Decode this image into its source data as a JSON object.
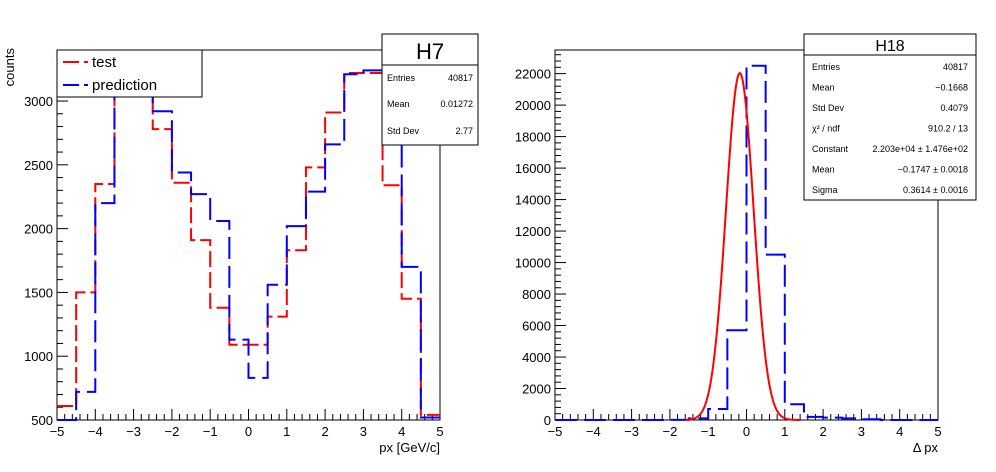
{
  "chart_data": [
    {
      "type": "histogram",
      "name": "H7",
      "xlabel": "px [GeV/c]",
      "ylabel": "counts",
      "xlim": [
        -5,
        5
      ],
      "ylim": [
        500,
        3400
      ],
      "xticks": [
        -5,
        -4,
        -3,
        -2,
        -1,
        0,
        1,
        2,
        3,
        4,
        5
      ],
      "yticks": [
        500,
        1000,
        1500,
        2000,
        2500,
        3000
      ],
      "bin_edges": [
        -5,
        -4.5,
        -4,
        -3.5,
        -3,
        -2.5,
        -2,
        -1.5,
        -1,
        -0.5,
        0,
        0.5,
        1,
        1.5,
        2,
        2.5,
        3,
        3.5,
        4,
        4.5,
        5
      ],
      "series": [
        {
          "name": "test",
          "color": "#ff0000",
          "dash": "16,5",
          "values": [
            610,
            1500,
            2350,
            3230,
            3250,
            2780,
            2360,
            1910,
            1380,
            1090,
            1090,
            1310,
            1830,
            2480,
            2910,
            3220,
            3220,
            2340,
            1450,
            540
          ]
        },
        {
          "name": "prediction",
          "color": "#0000ff",
          "dash": "22,7",
          "values": [
            500,
            720,
            2200,
            3110,
            3270,
            2920,
            2440,
            2270,
            2060,
            1130,
            830,
            1560,
            2020,
            2290,
            2660,
            3210,
            3240,
            2720,
            1700,
            520
          ]
        }
      ],
      "legend": {
        "position": "top-left",
        "entries": [
          {
            "label": "test",
            "color": "#ff0000"
          },
          {
            "label": "prediction",
            "color": "#0000ff"
          }
        ]
      },
      "stats": {
        "title": "H7",
        "rows": [
          {
            "key": "Entries",
            "value": "40817"
          },
          {
            "key": "Mean",
            "value": "0.01272"
          },
          {
            "key": "Std Dev",
            "value": "2.77"
          }
        ]
      }
    },
    {
      "type": "histogram",
      "name": "H18",
      "xlabel": "Δ px",
      "ylabel": "",
      "xlim": [
        -5,
        5
      ],
      "ylim": [
        0,
        23500
      ],
      "xticks": [
        -5,
        -4,
        -3,
        -2,
        -1,
        0,
        1,
        2,
        3,
        4,
        5
      ],
      "yticks": [
        0,
        2000,
        4000,
        6000,
        8000,
        10000,
        12000,
        14000,
        16000,
        18000,
        20000,
        22000
      ],
      "bin_edges": [
        -5,
        -4.5,
        -4,
        -3.5,
        -3,
        -2.5,
        -2,
        -1.5,
        -1,
        -0.5,
        0,
        0.5,
        1,
        1.5,
        2,
        2.5,
        3,
        3.5,
        4,
        4.5,
        5
      ],
      "series": [
        {
          "name": "Δ px",
          "color": "#0000ff",
          "dash": "22,7",
          "values": [
            0,
            0,
            0,
            0,
            0,
            0,
            10,
            100,
            700,
            5700,
            22500,
            10500,
            1000,
            200,
            150,
            100,
            50,
            0,
            0,
            0
          ]
        }
      ],
      "fit": {
        "function": "gaus",
        "color": "#ff0000",
        "constant": 22030,
        "mean": -0.1747,
        "sigma": 0.3614
      },
      "stats": {
        "title": "H18",
        "rows": [
          {
            "key": "Entries",
            "value": "40817"
          },
          {
            "key": "Mean",
            "value": "−0.1668"
          },
          {
            "key": "Std Dev",
            "value": "0.4079"
          },
          {
            "key": "χ² / ndf",
            "value": "910.2 / 13"
          },
          {
            "key": "Constant",
            "value": "2.203e+04 ± 1.476e+02"
          },
          {
            "key": "Mean",
            "value": "−0.1747 ± 0.0018"
          },
          {
            "key": "Sigma",
            "value": "0.3614 ± 0.0016"
          }
        ]
      }
    }
  ]
}
